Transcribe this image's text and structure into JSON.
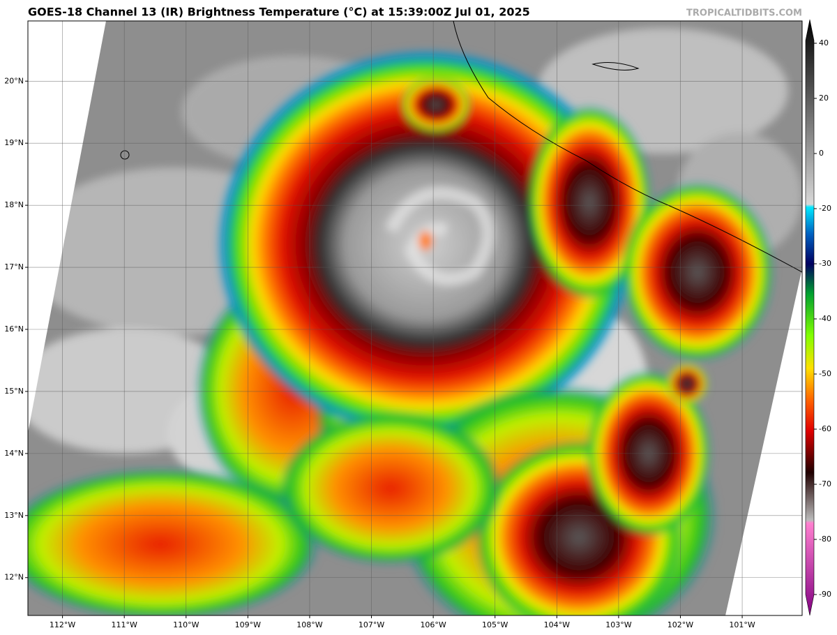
{
  "map": {
    "title": "GOES-18 Channel 13 (IR) Brightness Temperature (°C) at 15:39:00Z Jul 01, 2025",
    "credit": "TROPICALTIDBITS.COM",
    "latlim": [
      20.97,
      11.39
    ],
    "lonlim": [
      -112.56,
      -100.03
    ],
    "lat_ticks": [
      {
        "value": 20,
        "label": "20°N"
      },
      {
        "value": 19,
        "label": "19°N"
      },
      {
        "value": 18,
        "label": "18°N"
      },
      {
        "value": 17,
        "label": "17°N"
      },
      {
        "value": 16,
        "label": "16°N"
      },
      {
        "value": 15,
        "label": "15°N"
      },
      {
        "value": 14,
        "label": "14°N"
      },
      {
        "value": 13,
        "label": "13°N"
      },
      {
        "value": 12,
        "label": "12°N"
      }
    ],
    "lon_ticks": [
      {
        "value": -112,
        "label": "112°W"
      },
      {
        "value": -111,
        "label": "111°W"
      },
      {
        "value": -110,
        "label": "110°W"
      },
      {
        "value": -109,
        "label": "109°W"
      },
      {
        "value": -108,
        "label": "108°W"
      },
      {
        "value": -107,
        "label": "107°W"
      },
      {
        "value": -106,
        "label": "106°W"
      },
      {
        "value": -105,
        "label": "105°W"
      },
      {
        "value": -104,
        "label": "104°W"
      },
      {
        "value": -103,
        "label": "103°W"
      },
      {
        "value": -102,
        "label": "102°W"
      },
      {
        "value": -101,
        "label": "101°W"
      }
    ],
    "colorbar_ticks": [
      40,
      20,
      0,
      -20,
      -30,
      -40,
      -50,
      -60,
      -70,
      -80,
      -90
    ]
  }
}
